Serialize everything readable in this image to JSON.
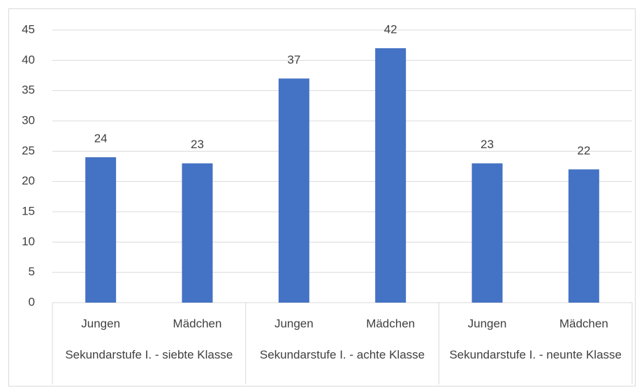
{
  "chart_data": {
    "type": "bar",
    "categories": [
      "Jungen",
      "Mädchen",
      "Jungen",
      "Mädchen",
      "Jungen",
      "Mädchen"
    ],
    "groups": [
      "Sekundarstufe I. - siebte Klasse",
      "Sekundarstufe I. - achte Klasse",
      "Sekundarstufe I. - neunte Klasse"
    ],
    "values": [
      24,
      23,
      37,
      42,
      23,
      22
    ],
    "color": "#4472c4",
    "ylim": [
      0,
      45
    ],
    "yticks": [
      0,
      5,
      10,
      15,
      20,
      25,
      30,
      35,
      40,
      45
    ],
    "grid": true
  }
}
